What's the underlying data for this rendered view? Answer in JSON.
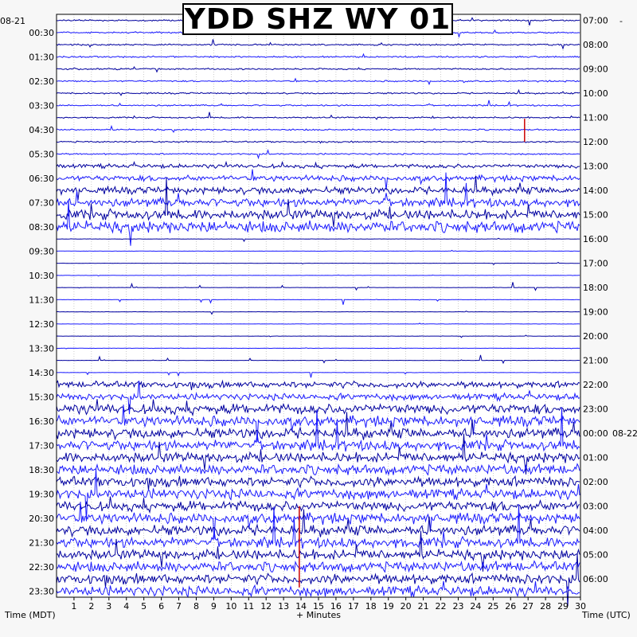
{
  "chart_data": {
    "type": "heatmap",
    "title": "YDD SHZ WY 01",
    "xlabel": "+ Minutes",
    "left_axis_label": "Time (MDT)",
    "right_axis_label": "Time (UTC)",
    "left_start_date": "08-21",
    "right_date_change": "08-22",
    "x_ticks": [
      1,
      2,
      3,
      4,
      5,
      6,
      7,
      8,
      9,
      10,
      11,
      12,
      13,
      14,
      15,
      16,
      17,
      18,
      19,
      20,
      21,
      22,
      23,
      24,
      25,
      26,
      27,
      28,
      29,
      30
    ],
    "xlim": [
      0,
      30
    ],
    "left_ticks": [
      "00:30",
      "01:30",
      "02:30",
      "03:30",
      "04:30",
      "05:30",
      "06:30",
      "07:30",
      "08:30",
      "09:30",
      "10:30",
      "11:30",
      "12:30",
      "13:30",
      "14:30",
      "15:30",
      "16:30",
      "17:30",
      "18:30",
      "19:30",
      "20:30",
      "21:30",
      "22:30",
      "23:30"
    ],
    "right_ticks": [
      "07:00",
      "08:00",
      "09:00",
      "10:00",
      "11:00",
      "12:00",
      "13:00",
      "14:00",
      "15:00",
      "16:00",
      "17:00",
      "18:00",
      "19:00",
      "20:00",
      "21:00",
      "22:00",
      "23:00",
      "00:00",
      "01:00",
      "02:00",
      "03:00",
      "04:00",
      "05:00",
      "06:00"
    ],
    "trace_colors": [
      "#0000a0",
      "#1a1aff"
    ],
    "event_color": "#cc0000",
    "grid": true
  }
}
